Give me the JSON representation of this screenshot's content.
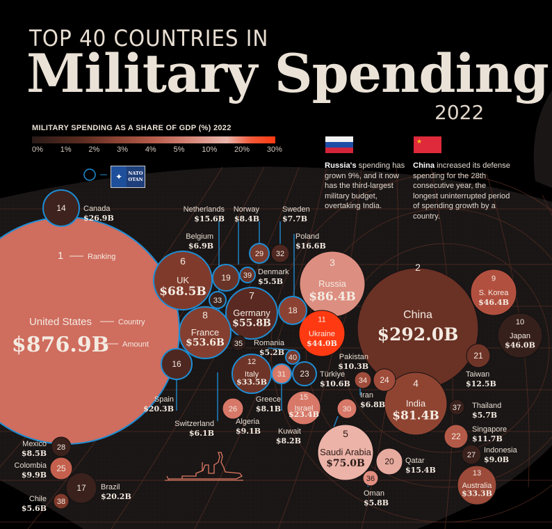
{
  "header": {
    "title_top": "TOP 40 COUNTRIES IN",
    "title_main": "Military Spending",
    "year": "2022"
  },
  "legend": {
    "title": "MILITARY SPENDING AS A SHARE OF GDP (%) 2022",
    "ticks": [
      "0%",
      "1%",
      "2%",
      "3%",
      "4%",
      "5%",
      "10%",
      "20%",
      "30%"
    ],
    "nato_label_top": "NATO",
    "nato_label_bottom": "OTAN",
    "nato_border_color": "#1e8ed6"
  },
  "notes": {
    "russia": {
      "bold": "Russia's",
      "text": " spending has grown 9%, and it now has the third-largest military budget, overtaking India."
    },
    "china": {
      "bold": "China",
      "text": " increased its defense spending for the 28th consecutive year, the longest uninterrupted period of spending growth by a country."
    }
  },
  "key": {
    "ranking": "Ranking",
    "country": "Country",
    "amount": "Amount"
  },
  "colors": {
    "background": "#000000",
    "globe": "#1a1616",
    "grid": "#5a2e22",
    "nato_outline": "#1e8ed6",
    "text": "#ebe2d7"
  },
  "chart_data": {
    "type": "bubble",
    "title": "Top 40 Countries in Military Spending 2022",
    "size_metric": "Military spending (USD billions)",
    "color_metric": "Military spending as share of GDP (%)",
    "countries": [
      {
        "rank": 1,
        "country": "United States",
        "amount": "$876.9B",
        "value": 876.9,
        "nato": true,
        "color": "#cf6d5e"
      },
      {
        "rank": 2,
        "country": "China",
        "amount": "$292.0B",
        "value": 292.0,
        "nato": false,
        "color": "#6a3125"
      },
      {
        "rank": 3,
        "country": "Russia",
        "amount": "$86.4B",
        "value": 86.4,
        "nato": false,
        "color": "#dc8e80"
      },
      {
        "rank": 4,
        "country": "India",
        "amount": "$81.4B",
        "value": 81.4,
        "nato": false,
        "color": "#8f4432"
      },
      {
        "rank": 5,
        "country": "Saudi Arabia",
        "amount": "$75.0B",
        "value": 75.0,
        "nato": false,
        "color": "#ecb3a8"
      },
      {
        "rank": 6,
        "country": "UK",
        "amount": "$68.5B",
        "value": 68.5,
        "nato": true,
        "color": "#7f3a2b"
      },
      {
        "rank": 7,
        "country": "Germany",
        "amount": "$55.8B",
        "value": 55.8,
        "nato": true,
        "color": "#5a2a22"
      },
      {
        "rank": 8,
        "country": "France",
        "amount": "$53.6B",
        "value": 53.6,
        "nato": true,
        "color": "#843f30"
      },
      {
        "rank": 9,
        "country": "S. Korea",
        "amount": "$46.4B",
        "value": 46.4,
        "nato": false,
        "color": "#b2503f"
      },
      {
        "rank": 10,
        "country": "Japan",
        "amount": "$46.0B",
        "value": 46.0,
        "nato": false,
        "color": "#36201c"
      },
      {
        "rank": 11,
        "country": "Ukraine",
        "amount": "$44.0B",
        "value": 44.0,
        "nato": false,
        "color": "#ff3a12"
      },
      {
        "rank": 12,
        "country": "Italy",
        "amount": "$33.5B",
        "value": 33.5,
        "nato": true,
        "color": "#6e3428"
      },
      {
        "rank": 13,
        "country": "Australia",
        "amount": "$33.3B",
        "value": 33.3,
        "nato": false,
        "color": "#9c4a39"
      },
      {
        "rank": 14,
        "country": "Canada",
        "amount": "$26.9B",
        "value": 26.9,
        "nato": true,
        "color": "#3d221d"
      },
      {
        "rank": 15,
        "country": "Israel",
        "amount": "$23.4B",
        "value": 23.4,
        "nato": false,
        "color": "#d77868"
      },
      {
        "rank": 16,
        "country": "Spain",
        "amount": "$20.3B",
        "value": 20.3,
        "nato": true,
        "color": "#4e2720"
      },
      {
        "rank": 17,
        "country": "Brazil",
        "amount": "$20.2B",
        "value": 20.2,
        "nato": false,
        "color": "#3a211c"
      },
      {
        "rank": 18,
        "country": "Poland",
        "amount": "$16.6B",
        "value": 16.6,
        "nato": true,
        "color": "#8c4232"
      },
      {
        "rank": 19,
        "country": "Netherlands",
        "amount": "$15.6B",
        "value": 15.6,
        "nato": true,
        "color": "#6a3327"
      },
      {
        "rank": 20,
        "country": "Qatar",
        "amount": "$15.4B",
        "value": 15.4,
        "nato": false,
        "color": "#e7aa9e"
      },
      {
        "rank": 21,
        "country": "Taiwan",
        "amount": "$12.5B",
        "value": 12.5,
        "nato": false,
        "color": "#6e3428"
      },
      {
        "rank": 22,
        "country": "Singapore",
        "amount": "$11.7B",
        "value": 11.7,
        "nato": false,
        "color": "#b45a48"
      },
      {
        "rank": 23,
        "country": "Türkiye",
        "amount": "$10.6B",
        "value": 10.6,
        "nato": true,
        "color": "#3a211c"
      },
      {
        "rank": 24,
        "country": "Pakistan",
        "amount": "$10.3B",
        "value": 10.3,
        "nato": false,
        "color": "#a04c3b"
      },
      {
        "rank": 25,
        "country": "Colombia",
        "amount": "$9.9B",
        "value": 9.9,
        "nato": false,
        "color": "#c4604d"
      },
      {
        "rank": 26,
        "country": "Algeria",
        "amount": "$9.1B",
        "value": 9.1,
        "nato": false,
        "color": "#d77868"
      },
      {
        "rank": 27,
        "country": "Indonesia",
        "amount": "$9.0B",
        "value": 9.0,
        "nato": false,
        "color": "#3a211c"
      },
      {
        "rank": 28,
        "country": "Mexico",
        "amount": "$8.5B",
        "value": 8.5,
        "nato": false,
        "color": "#3a211c"
      },
      {
        "rank": 29,
        "country": "Norway",
        "amount": "$8.4B",
        "value": 8.4,
        "nato": true,
        "color": "#7a3a2c"
      },
      {
        "rank": 30,
        "country": "Kuwait",
        "amount": "$8.2B",
        "value": 8.2,
        "nato": false,
        "color": "#d77868"
      },
      {
        "rank": 31,
        "country": "Greece",
        "amount": "$8.1B",
        "value": 8.1,
        "nato": true,
        "color": "#d77868"
      },
      {
        "rank": 32,
        "country": "Sweden",
        "amount": "$7.7B",
        "value": 7.7,
        "nato": false,
        "color": "#4e2720"
      },
      {
        "rank": 33,
        "country": "Belgium",
        "amount": "$6.9B",
        "value": 6.9,
        "nato": true,
        "color": "#3a211c"
      },
      {
        "rank": 34,
        "country": "Iran",
        "amount": "$6.8B",
        "value": 6.8,
        "nato": false,
        "color": "#a04c3b"
      },
      {
        "rank": 35,
        "country": "Switzerland",
        "amount": "$6.1B",
        "value": 6.1,
        "nato": false,
        "color": "#2e1d1a"
      },
      {
        "rank": 36,
        "country": "Oman",
        "amount": "$5.8B",
        "value": 5.8,
        "nato": false,
        "color": "#e28e80"
      },
      {
        "rank": 37,
        "country": "Thailand",
        "amount": "$5.7B",
        "value": 5.7,
        "nato": false,
        "color": "#3a211c"
      },
      {
        "rank": 38,
        "country": "Chile",
        "amount": "$5.6B",
        "value": 5.6,
        "nato": false,
        "color": "#7f3a2b"
      },
      {
        "rank": 39,
        "country": "Denmark",
        "amount": "$5.5B",
        "value": 5.5,
        "nato": true,
        "color": "#6a3327"
      },
      {
        "rank": 40,
        "country": "Romania",
        "amount": "$5.2B",
        "value": 5.2,
        "nato": true,
        "color": "#7a3a2c"
      }
    ]
  }
}
